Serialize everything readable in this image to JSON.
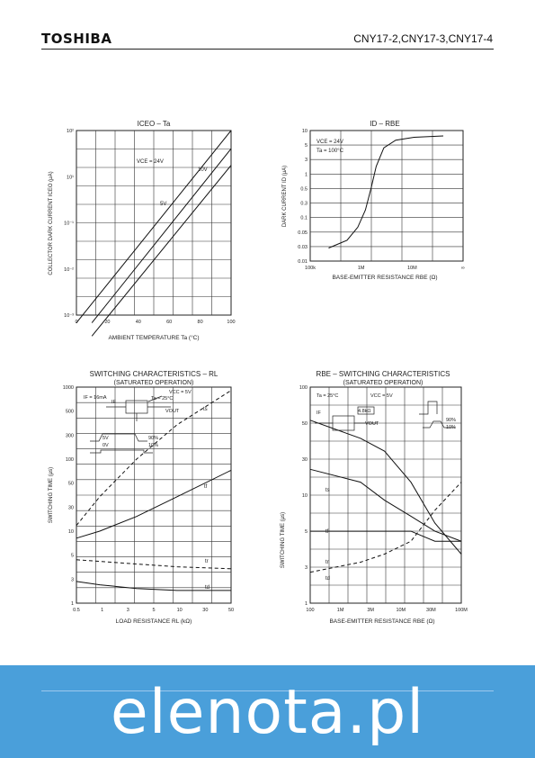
{
  "header": {
    "brand": "TOSHIBA",
    "part_numbers": "CNY17-2,CNY17-3,CNY17-4"
  },
  "chart_data": [
    {
      "type": "line",
      "title": "ICEO – Ta",
      "xlabel": "AMBIENT TEMPERATURE Ta (°C)",
      "ylabel": "COLLECTOR DARK CURRENT ICEO (μA)",
      "x_ticks": [
        "0",
        "20",
        "40",
        "60",
        "80",
        "100"
      ],
      "y_ticks": [
        "10²",
        "10¹",
        "10⁻¹",
        "10⁻²",
        "10⁻³"
      ],
      "annotations": [
        "VCE = 24V",
        "10V",
        "5V"
      ],
      "scale_y": "log",
      "series": [
        {
          "x": [
            0,
            100
          ],
          "y": [
            0.0006,
            200
          ]
        },
        {
          "x": [
            10,
            100
          ],
          "y": [
            0.0006,
            60
          ]
        },
        {
          "x": [
            10,
            100
          ],
          "y": [
            0.00025,
            20
          ]
        }
      ]
    },
    {
      "type": "line",
      "title": "ID – RBE",
      "xlabel": "BASE-EMITTER RESISTANCE RBE (Ω)",
      "ylabel": "DARK CURRENT ID (μA)",
      "x_ticks": [
        "100k",
        "1M",
        "10M",
        "∞"
      ],
      "y_ticks": [
        "10",
        "5",
        "3",
        "1",
        "0.5",
        "0.3",
        "0.1",
        "0.05",
        "0.03",
        "0.01"
      ],
      "annotations": [
        "VCE = 24V",
        "Ta = 100°C"
      ],
      "scale_x": "log",
      "scale_y": "log",
      "series": [
        {
          "x": [
            200000,
            400000,
            600000,
            800000,
            1000000,
            1200000,
            1600000,
            2500000,
            5000000,
            15000000
          ],
          "y": [
            0.02,
            0.03,
            0.06,
            0.15,
            0.5,
            1.5,
            4,
            6,
            7,
            7.5
          ]
        }
      ]
    },
    {
      "type": "line",
      "title": "SWITCHING CHARACTERISTICS – RL",
      "subtitle": "(SATURATED OPERATION)",
      "xlabel": "LOAD RESISTANCE RL (kΩ)",
      "ylabel": "SWITCHING TIME (μs)",
      "x_ticks": [
        "0.5",
        "1",
        "3",
        "5",
        "10",
        "30",
        "50"
      ],
      "y_ticks": [
        "1000",
        "500",
        "300",
        "100",
        "50",
        "30",
        "10",
        "5",
        "3",
        "1"
      ],
      "annotations": [
        "IF = 16mA",
        "VCC = 5V",
        "Ta = 25°C",
        "VOUT",
        "IF",
        "ts",
        "tf",
        "tr",
        "td",
        "5V",
        "0V",
        "90%",
        "10%"
      ],
      "scale_x": "log",
      "scale_y": "log",
      "series": [
        {
          "name": "ts",
          "x": [
            0.5,
            1,
            3,
            10,
            50
          ],
          "y": [
            12,
            30,
            100,
            300,
            900
          ]
        },
        {
          "name": "tf",
          "x": [
            0.5,
            1,
            3,
            10,
            50
          ],
          "y": [
            8,
            10,
            16,
            30,
            70
          ]
        },
        {
          "name": "tr",
          "x": [
            0.5,
            1,
            3,
            10,
            50
          ],
          "y": [
            4,
            3.8,
            3.5,
            3.2,
            3
          ]
        },
        {
          "name": "td",
          "x": [
            0.5,
            1,
            3,
            10,
            50
          ],
          "y": [
            2,
            1.8,
            1.6,
            1.5,
            1.5
          ]
        }
      ]
    },
    {
      "type": "line",
      "title": "RBE – SWITCHING CHARACTERISTICS",
      "subtitle": "(SATURATED OPERATION)",
      "xlabel": "BASE-EMITTER RESISTANCE RBE (Ω)",
      "ylabel": "SWITCHING TIME (μs)",
      "x_ticks": [
        "100",
        "1M",
        "3M",
        "10M",
        "30M",
        "100M"
      ],
      "y_ticks": [
        "100",
        "50",
        "30",
        "10",
        "5",
        "3",
        "1"
      ],
      "annotations": [
        "Ta = 25°C",
        "VCC = 5V",
        "IF",
        "4.8kΩ",
        "VOUT",
        "90%",
        "10%",
        "ts",
        "tf",
        "tr",
        "td"
      ],
      "scale_x": "log",
      "scale_y": "log",
      "series": [
        {
          "name": "tf",
          "x": [
            100,
            1000,
            3000,
            10000,
            30000,
            100000
          ],
          "y": [
            60,
            40,
            30,
            15,
            6,
            3
          ]
        },
        {
          "name": "ts",
          "x": [
            100,
            1000,
            3000,
            10000,
            30000,
            100000
          ],
          "y": [
            20,
            15,
            10,
            7,
            5,
            4
          ]
        },
        {
          "name": "tr",
          "x": [
            100,
            1000,
            3000,
            10000,
            30000,
            100000
          ],
          "y": [
            5,
            5,
            5,
            5,
            4,
            4
          ]
        },
        {
          "name": "td",
          "x": [
            100,
            1000,
            3000,
            10000,
            30000,
            100000
          ],
          "y": [
            2,
            2.5,
            3,
            4,
            8,
            15
          ]
        }
      ]
    }
  ],
  "watermark": "elenota.pl"
}
